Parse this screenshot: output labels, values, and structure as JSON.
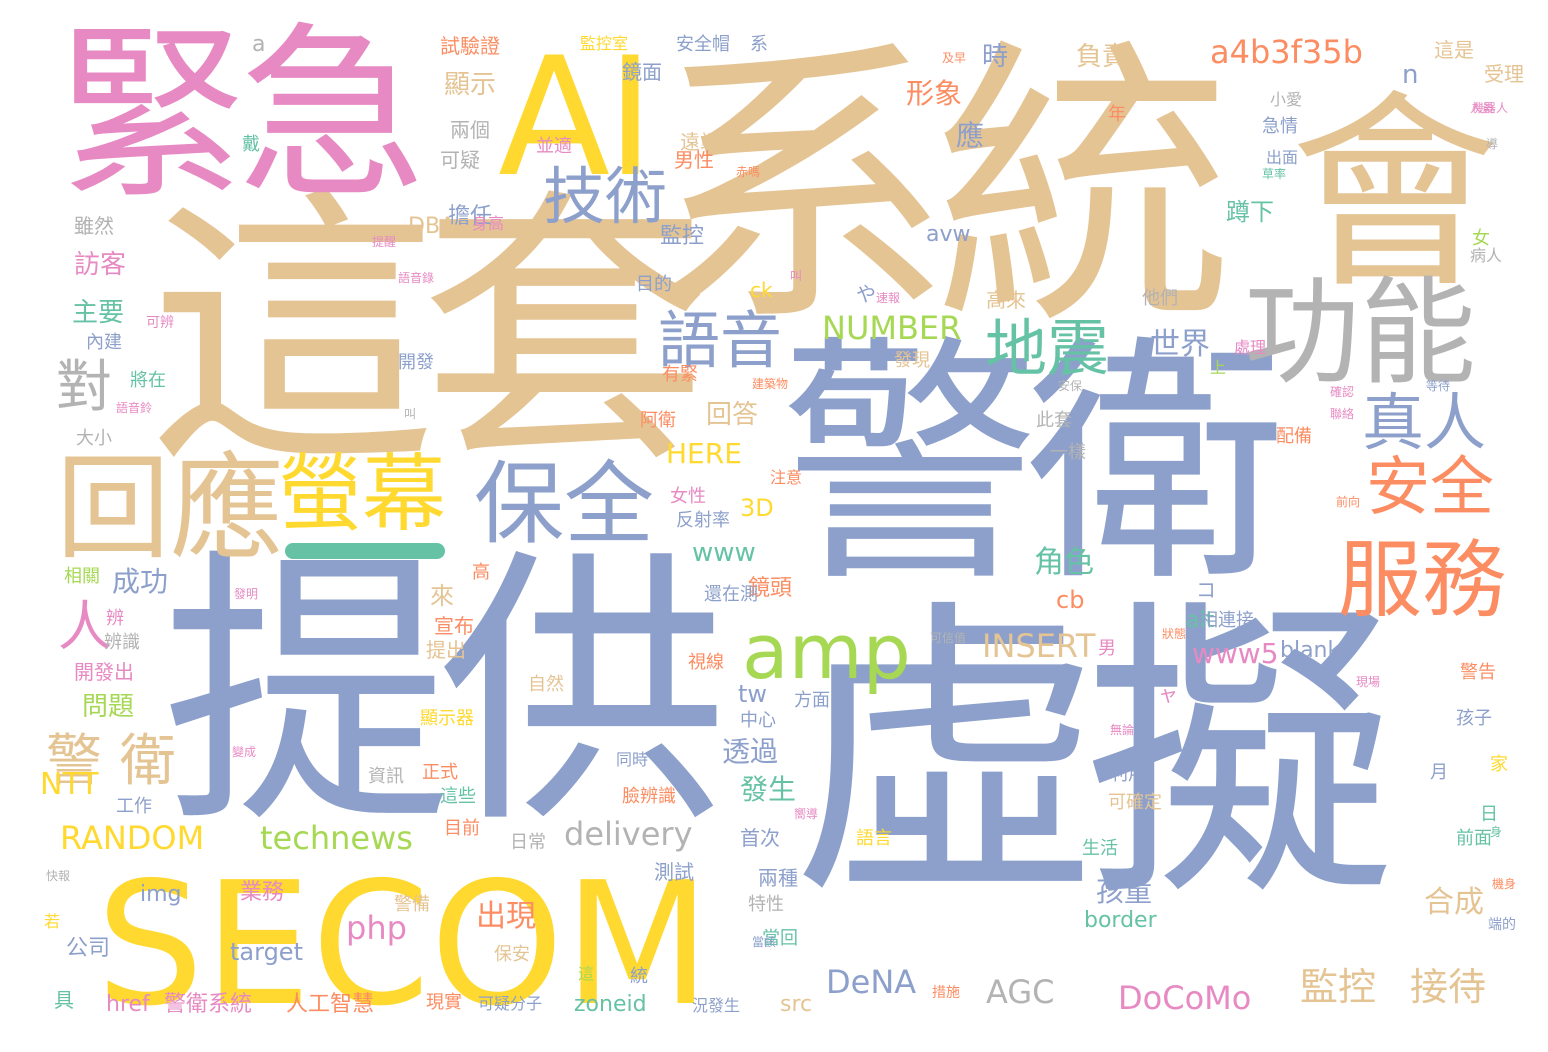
{
  "colors": {
    "blue": "#8da0cb",
    "tan": "#e5c494",
    "pink": "#e78ac3",
    "yellow": "#ffd92f",
    "orange": "#fc8d62",
    "green": "#a6d854",
    "teal": "#66c2a5",
    "gray": "#b3b3b3"
  },
  "words": [
    {
      "text": "虛擬",
      "color": "blue"
    },
    {
      "text": "警衛",
      "color": "blue"
    },
    {
      "text": "提供",
      "color": "blue"
    },
    {
      "text": "系統",
      "color": "tan"
    },
    {
      "text": "這套",
      "color": "tan"
    },
    {
      "text": "緊急",
      "color": "pink"
    },
    {
      "text": "SECOM",
      "color": "yellow"
    },
    {
      "text": "AI",
      "color": "yellow"
    },
    {
      "text": "會",
      "color": "tan"
    },
    {
      "text": "功能",
      "color": "gray"
    },
    {
      "text": "回應",
      "color": "tan"
    },
    {
      "text": "保全",
      "color": "blue"
    },
    {
      "text": "螢幕",
      "color": "yellow"
    },
    {
      "text": "服務",
      "color": "orange"
    },
    {
      "text": "技術",
      "color": "blue"
    },
    {
      "text": "amp",
      "color": "green"
    },
    {
      "text": "語音",
      "color": "blue"
    },
    {
      "text": "地震",
      "color": "teal"
    },
    {
      "text": "安全",
      "color": "orange"
    },
    {
      "text": "真人",
      "color": "blue"
    },
    {
      "text": "警 衛",
      "color": "tan"
    },
    {
      "text": "人",
      "color": "pink"
    },
    {
      "text": "對",
      "color": "gray"
    },
    {
      "text": "監控",
      "color": "tan"
    },
    {
      "text": "接待",
      "color": "tan"
    },
    {
      "text": "a4b3f35b",
      "color": "orange"
    },
    {
      "text": "NUMBER",
      "color": "green"
    },
    {
      "text": "DoCoMo",
      "color": "pink"
    },
    {
      "text": "technews",
      "color": "green"
    },
    {
      "text": "RANDOM",
      "color": "yellow"
    },
    {
      "text": "INSERT",
      "color": "tan"
    },
    {
      "text": "delivery",
      "color": "gray"
    },
    {
      "text": "DeNA",
      "color": "blue"
    },
    {
      "text": "AGC",
      "color": "gray"
    },
    {
      "text": "php",
      "color": "pink"
    },
    {
      "text": "出現",
      "color": "orange"
    },
    {
      "text": "世界",
      "color": "blue"
    },
    {
      "text": "形象",
      "color": "orange"
    },
    {
      "text": "成功",
      "color": "blue"
    },
    {
      "text": "www5",
      "color": "pink"
    },
    {
      "text": "www",
      "color": "teal"
    },
    {
      "text": "HERE",
      "color": "yellow"
    },
    {
      "text": "回答",
      "color": "tan"
    },
    {
      "text": "角色",
      "color": "teal"
    },
    {
      "text": "NTT",
      "color": "yellow"
    },
    {
      "text": "透過",
      "color": "blue"
    },
    {
      "text": "發生",
      "color": "teal"
    },
    {
      "text": "孩童",
      "color": "blue"
    },
    {
      "text": "合成",
      "color": "tan"
    },
    {
      "text": "問題",
      "color": "green"
    },
    {
      "text": "主要",
      "color": "teal"
    },
    {
      "text": "訪客",
      "color": "pink"
    },
    {
      "text": "顯示",
      "color": "tan"
    },
    {
      "text": "負責",
      "color": "tan"
    },
    {
      "text": "時",
      "color": "blue"
    },
    {
      "text": "應",
      "color": "blue"
    },
    {
      "text": "蹲下",
      "color": "teal"
    },
    {
      "text": "擔任",
      "color": "blue"
    },
    {
      "text": "監控",
      "color": "blue"
    },
    {
      "text": "cb",
      "color": "orange"
    },
    {
      "text": "tw",
      "color": "blue"
    },
    {
      "text": "3D",
      "color": "yellow"
    },
    {
      "text": "img",
      "color": "blue"
    },
    {
      "text": "target",
      "color": "blue"
    },
    {
      "text": "border",
      "color": "teal"
    },
    {
      "text": "blank",
      "color": "blue"
    },
    {
      "text": "alt",
      "color": "teal"
    },
    {
      "text": "src",
      "color": "tan"
    },
    {
      "text": "zoneid",
      "color": "teal"
    },
    {
      "text": "href",
      "color": "pink"
    },
    {
      "text": "avw",
      "color": "blue"
    },
    {
      "text": "ck",
      "color": "yellow"
    },
    {
      "text": "DBA",
      "color": "tan"
    },
    {
      "text": "n",
      "color": "blue"
    },
    {
      "text": "a",
      "color": "gray"
    },
    {
      "text": "鏡面",
      "color": "blue"
    },
    {
      "text": "鏡頭",
      "color": "orange"
    },
    {
      "text": "業務",
      "color": "pink"
    },
    {
      "text": "公司",
      "color": "blue"
    },
    {
      "text": "人工智慧",
      "color": "orange"
    },
    {
      "text": "警衛系統",
      "color": "pink"
    },
    {
      "text": "試驗證",
      "color": "orange"
    },
    {
      "text": "監控室",
      "color": "yellow"
    },
    {
      "text": "安全帽",
      "color": "blue"
    },
    {
      "text": "系",
      "color": "blue"
    },
    {
      "text": "這是",
      "color": "tan"
    },
    {
      "text": "受理",
      "color": "tan"
    },
    {
      "text": "並適",
      "color": "pink"
    },
    {
      "text": "遠端",
      "color": "tan"
    },
    {
      "text": "男性",
      "color": "orange"
    },
    {
      "text": "兩個",
      "color": "gray"
    },
    {
      "text": "可疑",
      "color": "gray"
    },
    {
      "text": "雖然",
      "color": "gray"
    },
    {
      "text": "來",
      "color": "tan"
    },
    {
      "text": "宣布",
      "color": "orange"
    },
    {
      "text": "提出",
      "color": "tan"
    },
    {
      "text": "開發出",
      "color": "pink"
    },
    {
      "text": "辨識",
      "color": "gray"
    },
    {
      "text": "相關",
      "color": "green"
    },
    {
      "text": "工作",
      "color": "blue"
    },
    {
      "text": "大小",
      "color": "gray"
    },
    {
      "text": "內建",
      "color": "blue"
    },
    {
      "text": "將在",
      "color": "teal"
    },
    {
      "text": "開發",
      "color": "blue"
    },
    {
      "text": "可辨",
      "color": "pink"
    },
    {
      "text": "目的",
      "color": "blue"
    },
    {
      "text": "他們",
      "color": "gray"
    },
    {
      "text": "處理",
      "color": "pink"
    },
    {
      "text": "上",
      "color": "green"
    },
    {
      "text": "高",
      "color": "orange"
    },
    {
      "text": "配備",
      "color": "orange"
    },
    {
      "text": "阿衛",
      "color": "orange"
    },
    {
      "text": "有緊",
      "color": "orange"
    },
    {
      "text": "此套",
      "color": "gray"
    },
    {
      "text": "一樣",
      "color": "gray"
    },
    {
      "text": "女性",
      "color": "pink"
    },
    {
      "text": "反射率",
      "color": "blue"
    },
    {
      "text": "還在測",
      "color": "blue"
    },
    {
      "text": "相連接",
      "color": "blue"
    },
    {
      "text": "視線",
      "color": "orange"
    },
    {
      "text": "方面",
      "color": "blue"
    },
    {
      "text": "自然",
      "color": "tan"
    },
    {
      "text": "顯示器",
      "color": "yellow"
    },
    {
      "text": "中心",
      "color": "blue"
    },
    {
      "text": "正式",
      "color": "orange"
    },
    {
      "text": "資訊",
      "color": "gray"
    },
    {
      "text": "同時",
      "color": "blue"
    },
    {
      "text": "這些",
      "color": "teal"
    },
    {
      "text": "臉辨識",
      "color": "orange"
    },
    {
      "text": "利用",
      "color": "blue"
    },
    {
      "text": "可確定",
      "color": "tan"
    },
    {
      "text": "目前",
      "color": "orange"
    },
    {
      "text": "日常",
      "color": "gray"
    },
    {
      "text": "首次",
      "color": "blue"
    },
    {
      "text": "語言",
      "color": "yellow"
    },
    {
      "text": "生活",
      "color": "teal"
    },
    {
      "text": "測試",
      "color": "blue"
    },
    {
      "text": "兩種",
      "color": "blue"
    },
    {
      "text": "特性",
      "color": "gray"
    },
    {
      "text": "警備",
      "color": "tan"
    },
    {
      "text": "保安",
      "color": "tan"
    },
    {
      "text": "現實",
      "color": "orange"
    },
    {
      "text": "可疑分子",
      "color": "blue"
    },
    {
      "text": "況發生",
      "color": "blue"
    },
    {
      "text": "月",
      "color": "blue"
    },
    {
      "text": "家",
      "color": "yellow"
    },
    {
      "text": "孩子",
      "color": "blue"
    },
    {
      "text": "警告",
      "color": "orange"
    },
    {
      "text": "前面",
      "color": "teal"
    },
    {
      "text": "日",
      "color": "teal"
    },
    {
      "text": "男",
      "color": "pink"
    },
    {
      "text": "女",
      "color": "green"
    },
    {
      "text": "病人",
      "color": "gray"
    },
    {
      "text": "年",
      "color": "orange"
    },
    {
      "text": "小愛",
      "color": "gray"
    },
    {
      "text": "急情",
      "color": "blue"
    },
    {
      "text": "出面",
      "color": "blue"
    },
    {
      "text": "身高",
      "color": "pink"
    },
    {
      "text": "高來",
      "color": "tan"
    },
    {
      "text": "發現",
      "color": "tan"
    },
    {
      "text": "當回",
      "color": "teal"
    },
    {
      "text": "戴",
      "color": "teal"
    },
    {
      "text": "具",
      "color": "teal"
    },
    {
      "text": "若",
      "color": "yellow"
    },
    {
      "text": "統",
      "color": "blue"
    },
    {
      "text": "這",
      "color": "green"
    },
    {
      "text": "及早",
      "color": "orange"
    },
    {
      "text": "機器人",
      "color": "pink"
    },
    {
      "text": "建築物",
      "color": "orange"
    },
    {
      "text": "や",
      "color": "blue"
    },
    {
      "text": "コ",
      "color": "blue"
    },
    {
      "text": "ャ",
      "color": "pink"
    },
    {
      "text": "快報",
      "color": "gray"
    },
    {
      "text": "可信值",
      "color": "gray"
    },
    {
      "text": "狀態",
      "color": "orange"
    },
    {
      "text": "速報",
      "color": "pink"
    },
    {
      "text": "導",
      "color": "gray"
    },
    {
      "text": "辨",
      "color": "pink"
    },
    {
      "text": "注意",
      "color": "orange"
    },
    {
      "text": "提醒",
      "color": "pink"
    },
    {
      "text": "變成",
      "color": "pink"
    },
    {
      "text": "發明",
      "color": "pink"
    },
    {
      "text": "嚮導",
      "color": "pink"
    },
    {
      "text": "語音錄",
      "color": "pink"
    },
    {
      "text": "語音鈴",
      "color": "pink"
    },
    {
      "text": "赤嗎",
      "color": "orange"
    },
    {
      "text": "措施",
      "color": "orange"
    },
    {
      "text": "安保",
      "color": "gray"
    },
    {
      "text": "端的",
      "color": "blue"
    },
    {
      "text": "身",
      "color": "teal"
    },
    {
      "text": "叫",
      "color": "pink"
    },
    {
      "text": "叫",
      "color": "gray"
    },
    {
      "text": "確認",
      "color": "pink"
    },
    {
      "text": "人員",
      "color": "pink"
    },
    {
      "text": "聯絡",
      "color": "pink"
    },
    {
      "text": "無論",
      "color": "pink"
    },
    {
      "text": "前向",
      "color": "orange"
    },
    {
      "text": "現場",
      "color": "pink"
    },
    {
      "text": "草率",
      "color": "teal"
    },
    {
      "text": "機身",
      "color": "orange"
    },
    {
      "text": "等待",
      "color": "blue"
    },
    {
      "text": "當該",
      "color": "blue"
    }
  ]
}
